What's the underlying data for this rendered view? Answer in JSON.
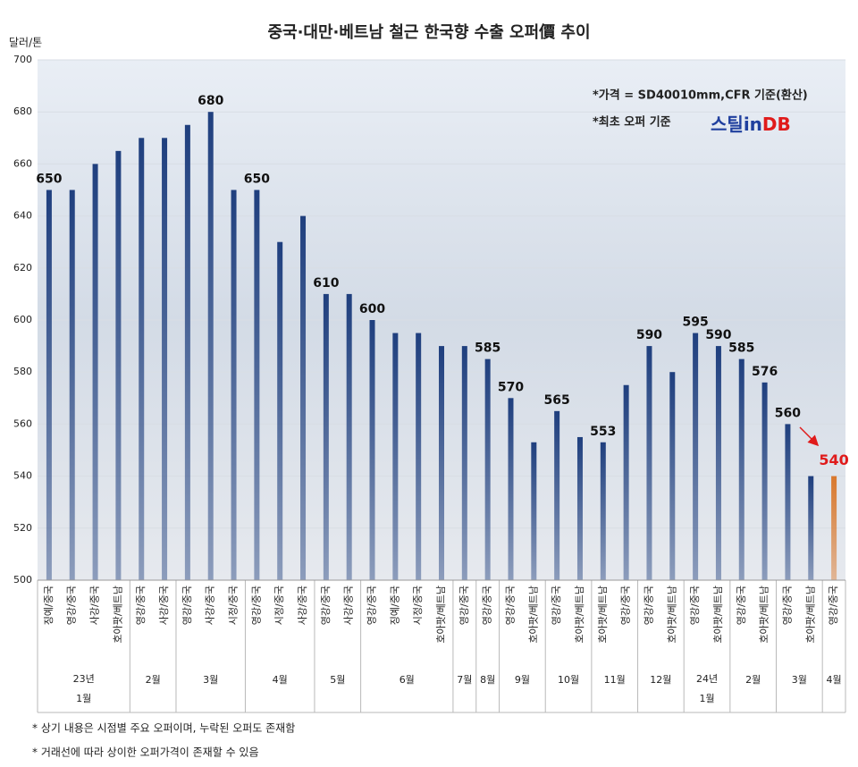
{
  "chart_data": {
    "type": "bar",
    "title": "중국·대만·베트남 철근 한국향 수출 오퍼價 추이",
    "y_axis_label": "달러/톤",
    "ylim": [
      500,
      700
    ],
    "yticks": [
      500,
      520,
      540,
      560,
      580,
      600,
      620,
      640,
      660,
      680,
      700
    ],
    "grid": true,
    "color": "#1f3f7e",
    "label_color": "#111111",
    "annotations": [
      "*가격 = SD40010mm,CFR 기준(환산)",
      "*최초 오퍼 기준"
    ],
    "logo": {
      "main": "스틸",
      "mid": "in",
      "end": "DB"
    },
    "footnotes": [
      "* 상기 내용은 시점별 주요 오퍼이며, 누락된 오퍼도 존재함",
      "* 거래선에 따라 상이한 오퍼가격이 존재할 수 있음"
    ],
    "groups": [
      {
        "year": "23년",
        "month": "1월",
        "categories": [
          "징예/중국",
          "영강/중국",
          "사강/중국",
          "호아팟/베트남"
        ],
        "values": [
          650,
          650,
          660,
          665
        ],
        "value_labels": [
          "650",
          null,
          null,
          null
        ]
      },
      {
        "month": "2월",
        "categories": [
          "영강/중국",
          "사강/중국"
        ],
        "values": [
          670,
          670
        ],
        "value_labels": [
          null,
          null
        ]
      },
      {
        "month": "3월",
        "categories": [
          "영강/중국",
          "사강/중국",
          "시정/중국"
        ],
        "values": [
          675,
          680,
          650
        ],
        "value_labels": [
          null,
          "680",
          null
        ]
      },
      {
        "month": "4월",
        "categories": [
          "영강/중국",
          "시정/중국",
          "사강/중국"
        ],
        "values": [
          650,
          630,
          640
        ],
        "value_labels": [
          "650",
          null,
          null
        ]
      },
      {
        "month": "5월",
        "categories": [
          "영강/중국",
          "사강/중국"
        ],
        "values": [
          610,
          610
        ],
        "value_labels": [
          "610",
          null
        ]
      },
      {
        "month": "6월",
        "categories": [
          "영강/중국",
          "징예/중국",
          "시정/중국",
          "호아팟/베트남"
        ],
        "values": [
          600,
          595,
          595,
          590
        ],
        "value_labels": [
          "600",
          null,
          null,
          null
        ]
      },
      {
        "month": "7월",
        "categories": [
          "영강/중국"
        ],
        "values": [
          590
        ],
        "value_labels": [
          null
        ]
      },
      {
        "month": "8월",
        "categories": [
          "영강/중국"
        ],
        "values": [
          585
        ],
        "value_labels": [
          "585"
        ]
      },
      {
        "month": "9월",
        "categories": [
          "영강/중국",
          "호아팟/베트남"
        ],
        "values": [
          570,
          553
        ],
        "value_labels": [
          "570",
          null
        ]
      },
      {
        "month": "10월",
        "categories": [
          "영강/중국",
          "호아팟/베트남"
        ],
        "values": [
          565,
          555
        ],
        "value_labels": [
          "565",
          null
        ]
      },
      {
        "month": "11월",
        "categories": [
          "호아팟/베트남",
          "영강/중국"
        ],
        "values": [
          553,
          575
        ],
        "value_labels": [
          "553",
          null
        ]
      },
      {
        "month": "12월",
        "categories": [
          "영강/중국",
          "호아팟/베트남"
        ],
        "values": [
          590,
          580
        ],
        "value_labels": [
          "590",
          null
        ]
      },
      {
        "year": "24년",
        "month": "1월",
        "categories": [
          "영강/중국",
          "호아팟/베트남"
        ],
        "values": [
          595,
          590
        ],
        "value_labels": [
          "595",
          "590"
        ]
      },
      {
        "month": "2월",
        "categories": [
          "영강/중국",
          "호아팟/베트남"
        ],
        "values": [
          585,
          576
        ],
        "value_labels": [
          "585",
          "576"
        ]
      },
      {
        "month": "3월",
        "categories": [
          "영강/중국",
          "호아팟/베트남"
        ],
        "values": [
          560,
          540
        ],
        "value_labels": [
          "560",
          null
        ]
      },
      {
        "month": "4월",
        "categories": [
          "영강/중국"
        ],
        "values": [
          540
        ],
        "value_labels": [
          "540"
        ],
        "color": "#d9782d",
        "label_color": "#e01b1b"
      }
    ]
  }
}
